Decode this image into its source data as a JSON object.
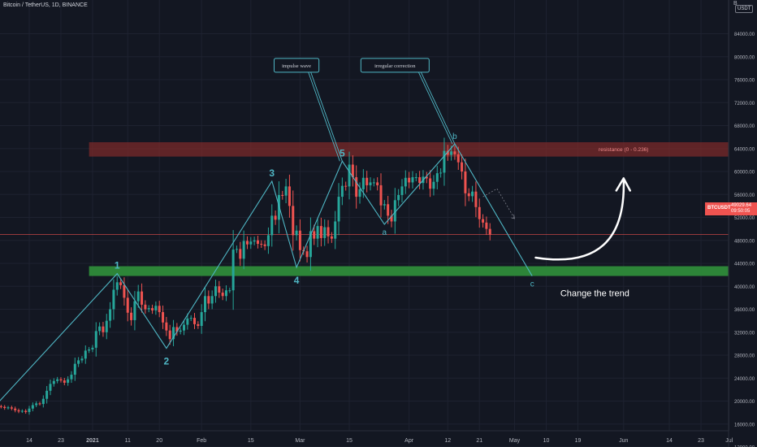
{
  "header": {
    "symbol_title": "Bitcoin / TetherUS, 1D, BINANCE",
    "currency": "USDT",
    "top_scale_label": "B"
  },
  "price_tag": {
    "symbol": "BTCUSDT",
    "price": "49029.64",
    "countdown": "09:50:05"
  },
  "colors": {
    "background": "#131722",
    "up": "#26a69a",
    "down": "#ef5350",
    "wave": "#4fb6c4",
    "resistance_zone": "#7a2a2a",
    "support_zone": "#2e8b3a",
    "grid": "#1e2230"
  },
  "chart_data": {
    "type": "candlestick",
    "title": "Bitcoin / TetherUS, 1D, BINANCE",
    "ylim": [
      10000,
      88000
    ],
    "yticks": [
      12000,
      16000,
      20000,
      24000,
      28000,
      32000,
      36000,
      40000,
      44000,
      48000,
      52000,
      56000,
      60000,
      64000,
      68000,
      72000,
      76000,
      80000,
      84000
    ],
    "ytick_labels": [
      "12000.00",
      "16000.00",
      "20000.00",
      "24000.00",
      "28000.00",
      "32000.00",
      "36000.00",
      "40000.00",
      "44000.00",
      "48000.00",
      "52000.00",
      "56000.00",
      "60000.00",
      "64000.00",
      "68000.00",
      "72000.00",
      "76000.00",
      "80000.00",
      "84000.00"
    ],
    "x_start": "2020-12-04",
    "xticks": [
      {
        "date": "2020-12-14",
        "label": "14",
        "bold": false
      },
      {
        "date": "2020-12-23",
        "label": "23",
        "bold": false
      },
      {
        "date": "2021-01-01",
        "label": "2021",
        "bold": true
      },
      {
        "date": "2021-01-11",
        "label": "11",
        "bold": false
      },
      {
        "date": "2021-01-20",
        "label": "20",
        "bold": false
      },
      {
        "date": "2021-02-01",
        "label": "Feb",
        "bold": false
      },
      {
        "date": "2021-02-15",
        "label": "15",
        "bold": false
      },
      {
        "date": "2021-03-01",
        "label": "Mar",
        "bold": false
      },
      {
        "date": "2021-03-15",
        "label": "15",
        "bold": false
      },
      {
        "date": "2021-04-01",
        "label": "Apr",
        "bold": false
      },
      {
        "date": "2021-04-12",
        "label": "12",
        "bold": false
      },
      {
        "date": "2021-04-21",
        "label": "21",
        "bold": false
      },
      {
        "date": "2021-05-01",
        "label": "May",
        "bold": false
      },
      {
        "date": "2021-05-10",
        "label": "10",
        "bold": false
      },
      {
        "date": "2021-05-19",
        "label": "19",
        "bold": false
      },
      {
        "date": "2021-06-01",
        "label": "Jun",
        "bold": false
      },
      {
        "date": "2021-06-14",
        "label": "14",
        "bold": false
      },
      {
        "date": "2021-06-23",
        "label": "23",
        "bold": false
      },
      {
        "date": "2021-07-01",
        "label": "Jul",
        "bold": false
      }
    ],
    "closes": [
      19200,
      19100,
      19000,
      18800,
      18900,
      18700,
      18400,
      18200,
      18300,
      18100,
      18700,
      19300,
      19600,
      19500,
      20400,
      21800,
      23000,
      23500,
      23800,
      23600,
      23200,
      23800,
      24600,
      26500,
      27100,
      27400,
      28800,
      29000,
      29300,
      32200,
      33000,
      32000,
      34000,
      36000,
      39400,
      40700,
      40200,
      38000,
      35400,
      34100,
      37400,
      39100,
      36800,
      36000,
      36200,
      35800,
      36600,
      35500,
      33700,
      32300,
      30800,
      32900,
      32100,
      32300,
      33300,
      34400,
      34500,
      33400,
      33100,
      35500,
      38300,
      37000,
      38300,
      40000,
      38900,
      38300,
      39300,
      39300,
      46400,
      46500,
      44800,
      47900,
      47300,
      47800,
      48000,
      47400,
      47300,
      47000,
      48900,
      52300,
      51600,
      55900,
      55800,
      57400,
      54000,
      48900,
      49700,
      46300,
      46100,
      45100,
      49600,
      48300,
      50500,
      48400,
      50300,
      48700,
      48300,
      51300,
      55600,
      57500,
      57400,
      61200,
      59000,
      55600,
      56900,
      58900,
      57600,
      58100,
      58100,
      57600,
      54100,
      54300,
      52300,
      51300,
      55000,
      55900,
      57400,
      58900,
      58100,
      59000,
      59000,
      58000,
      59100,
      58800,
      57000,
      58200,
      59700,
      59800,
      63600,
      62900,
      63500,
      63000,
      61600,
      60000,
      56200,
      55700,
      56500,
      53800,
      51700,
      51100,
      50000,
      49000
    ],
    "series": [
      {
        "name": "resistance (0 - 0.236)",
        "kind": "zone",
        "y_range": [
          62600,
          65100
        ],
        "x_range": [
          "2020-12-31",
          "2021-07-01"
        ]
      },
      {
        "name": "support",
        "kind": "zone",
        "y_range": [
          41800,
          43500
        ],
        "x_range": [
          "2020-12-31",
          "2021-07-01"
        ]
      },
      {
        "name": "current price",
        "kind": "hline",
        "value": 49029.64
      }
    ],
    "wave_points": [
      {
        "date": "2020-12-03",
        "price": 18300
      },
      {
        "date": "2021-01-08",
        "price": 42200,
        "label": "1"
      },
      {
        "date": "2021-01-22",
        "price": 29200,
        "label": "2"
      },
      {
        "date": "2021-02-21",
        "price": 58300,
        "label": "3"
      },
      {
        "date": "2021-02-28",
        "price": 43300,
        "label": "4"
      },
      {
        "date": "2021-03-13",
        "price": 61800,
        "label": "5"
      },
      {
        "date": "2021-03-25",
        "price": 50800,
        "label": "a"
      },
      {
        "date": "2021-04-14",
        "price": 64800,
        "label": "b"
      },
      {
        "date": "2021-05-06",
        "price": 41800,
        "label": "c"
      }
    ],
    "annotations": [
      {
        "text": "impulse wave",
        "box": true,
        "x": "2021-02-28",
        "y": 78500,
        "points_to": {
          "date": "2021-03-13",
          "price": 61800
        }
      },
      {
        "text": "irregular correction",
        "box": true,
        "x": "2021-03-28",
        "y": 78500,
        "points_to": {
          "date": "2021-04-14",
          "price": 64800
        }
      },
      {
        "text": "resistance (0 - 0.236)",
        "box": false,
        "x": "2021-06-01",
        "y": 63800
      },
      {
        "text": "Change the trend",
        "box": false,
        "x": "2021-05-14",
        "y": 38300
      }
    ]
  }
}
